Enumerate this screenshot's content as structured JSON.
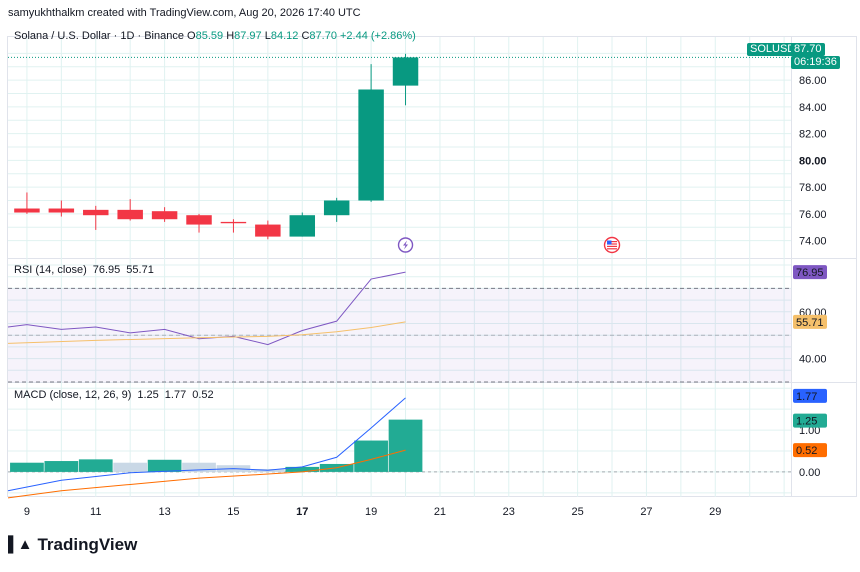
{
  "credit": "samyukhthalkm created with TradingView.com, Aug 20, 2026 17:40 UTC",
  "legend": {
    "name": "Solana / U.S. Dollar · 1D · Binance",
    "o_label": "O",
    "o": "85.59",
    "h_label": "H",
    "h": "87.97",
    "l_label": "L",
    "l": "84.12",
    "c_label": "C",
    "c": "87.70",
    "change": "+2.44 (+2.86%)"
  },
  "price_label": {
    "symbol": "SOLUSD",
    "price": "87.70",
    "countdown": "06:19:36"
  },
  "brand": "TradingView",
  "colors": {
    "up": "#089981",
    "down": "#f23645",
    "rsi": "#7e57c2",
    "rsi_ma": "#f5c06b",
    "macd": "#2962ff",
    "signal": "#ff6d00",
    "hist_up": "#22ab94",
    "hist_pale": "#b2dfdb",
    "hist_pale_down": "#c9d8e6",
    "grid": "#e0f2f1"
  },
  "chart_data": [
    {
      "type": "candlestick",
      "title": "Solana / U.S. Dollar · 1D · Binance",
      "x_tick_labels": [
        "9",
        "11",
        "13",
        "15",
        "17",
        "19",
        "21",
        "23",
        "25",
        "27",
        "29"
      ],
      "x_tick_days": [
        9,
        11,
        13,
        15,
        17,
        19,
        21,
        23,
        25,
        27,
        29
      ],
      "y_ticks": [
        74,
        76,
        78,
        80,
        82,
        84,
        86
      ],
      "y_tick_labels": [
        "74.00",
        "76.00",
        "78.00",
        "80.00",
        "82.00",
        "84.00",
        "86.00"
      ],
      "ylim": [
        72.7,
        89.3
      ],
      "xlim": [
        8.45,
        31.2
      ],
      "candles": [
        {
          "day": 9,
          "open": 76.4,
          "high": 77.6,
          "low": 76.0,
          "close": 76.1
        },
        {
          "day": 10,
          "open": 76.4,
          "high": 77.0,
          "low": 75.8,
          "close": 76.1
        },
        {
          "day": 11,
          "open": 76.3,
          "high": 76.6,
          "low": 74.8,
          "close": 75.9
        },
        {
          "day": 12,
          "open": 76.3,
          "high": 77.1,
          "low": 75.5,
          "close": 75.6
        },
        {
          "day": 13,
          "open": 76.2,
          "high": 76.5,
          "low": 75.4,
          "close": 75.6
        },
        {
          "day": 14,
          "open": 75.9,
          "high": 76.0,
          "low": 74.6,
          "close": 75.2
        },
        {
          "day": 15,
          "open": 75.4,
          "high": 75.6,
          "low": 74.6,
          "close": 75.3
        },
        {
          "day": 16,
          "open": 75.2,
          "high": 75.5,
          "low": 74.1,
          "close": 74.3
        },
        {
          "day": 17,
          "open": 74.3,
          "high": 76.1,
          "low": 74.3,
          "close": 75.9
        },
        {
          "day": 18,
          "open": 75.9,
          "high": 77.2,
          "low": 75.4,
          "close": 77.0
        },
        {
          "day": 19,
          "open": 77.0,
          "high": 87.2,
          "low": 76.9,
          "close": 85.3
        },
        {
          "day": 20,
          "open": 85.59,
          "high": 87.97,
          "low": 84.12,
          "close": 87.7
        }
      ],
      "last_price": 87.7,
      "event_markers": [
        {
          "day": 20,
          "icon": "lightning-icon"
        },
        {
          "day": 26,
          "icon": "us-flag-icon"
        }
      ]
    },
    {
      "type": "line",
      "title": "RSI (14, close)",
      "legend_values": [
        "76.95",
        "55.71"
      ],
      "y_ticks": [
        40,
        60
      ],
      "y_tick_labels": [
        "40.00",
        "60.00"
      ],
      "ylim": [
        30,
        83
      ],
      "bands": {
        "upper": 70,
        "middle": 50,
        "lower": 30
      },
      "series": [
        {
          "name": "RSI",
          "x": [
            8.45,
            9,
            10,
            11,
            12,
            13,
            14,
            15,
            16,
            17,
            18,
            19,
            20
          ],
          "values": [
            53.5,
            54.5,
            52.5,
            53.5,
            51,
            52.5,
            48.5,
            49.5,
            46,
            52,
            56,
            74,
            76.95
          ]
        },
        {
          "name": "RSI-based MA",
          "x": [
            8.45,
            11,
            14,
            16,
            17,
            18,
            19,
            20
          ],
          "values": [
            46.5,
            47.8,
            48.9,
            49.5,
            50.2,
            51.5,
            53.3,
            55.71
          ]
        }
      ]
    },
    {
      "type": "bar",
      "title": "MACD (close, 12, 26, 9)",
      "legend_values": [
        "1.25",
        "1.77",
        "0.52"
      ],
      "y_ticks": [
        0,
        1
      ],
      "y_tick_labels": [
        "0.00",
        "1.00"
      ],
      "ylim": [
        -0.6,
        2.15
      ],
      "histogram": {
        "x": [
          9,
          10,
          11,
          12,
          13,
          14,
          15,
          16,
          17,
          18,
          19,
          20
        ],
        "values": [
          0.22,
          0.26,
          0.3,
          0.22,
          0.29,
          0.22,
          0.16,
          0.07,
          0.12,
          0.19,
          0.75,
          1.25
        ]
      },
      "series": [
        {
          "name": "MACD",
          "x": [
            8.45,
            10,
            12,
            14,
            15,
            16,
            17,
            18,
            19,
            20
          ],
          "values": [
            -0.45,
            -0.2,
            -0.02,
            0.05,
            0.08,
            0.04,
            0.12,
            0.35,
            1.05,
            1.77
          ]
        },
        {
          "name": "Signal",
          "x": [
            8.45,
            10,
            12,
            14,
            16,
            17,
            18,
            19,
            20
          ],
          "values": [
            -0.62,
            -0.45,
            -0.3,
            -0.15,
            -0.05,
            0.0,
            0.1,
            0.3,
            0.52
          ]
        }
      ]
    }
  ]
}
